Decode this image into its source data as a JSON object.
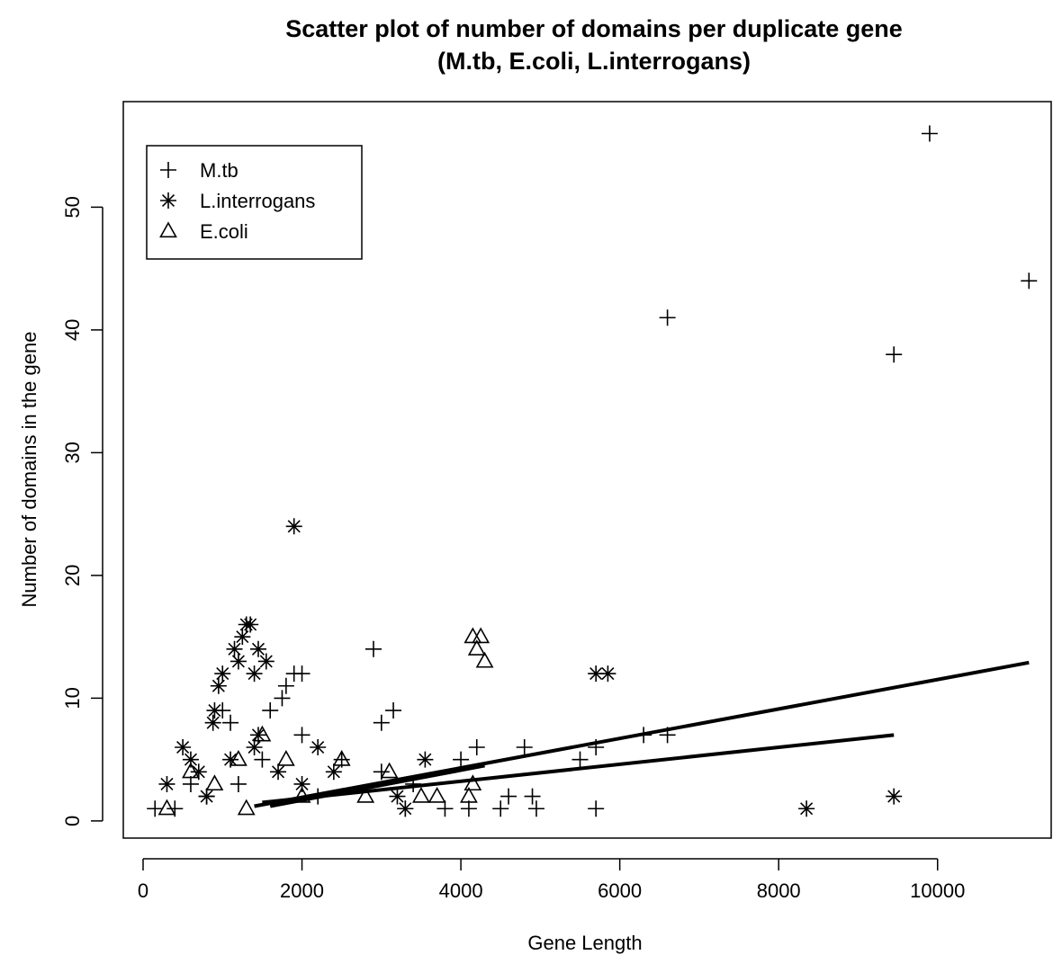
{
  "chart_data": {
    "type": "scatter",
    "title": "Scatter plot of number of domains per duplicate gene",
    "subtitle": "(M.tb, E.coli, L.interrogans)",
    "x_label": "Gene Length",
    "y_label": "Number of domains in the gene",
    "xlim": [
      -249,
      11430
    ],
    "ylim": [
      -1.4,
      58.6
    ],
    "xticks": [
      0,
      2000,
      4000,
      6000,
      8000,
      10000
    ],
    "yticks": [
      0,
      10,
      20,
      30,
      40,
      50
    ],
    "legend": "top-left",
    "series": [
      {
        "name": "M.tb",
        "color": "#000000",
        "marker": "plus",
        "x": [
          9900,
          11150,
          6600,
          9450,
          2900,
          1900,
          2000,
          1800,
          1750,
          3150,
          3000,
          1600,
          4200,
          4800,
          5700,
          6300,
          6600,
          5500,
          4900,
          4600,
          5700,
          4950,
          4100,
          3800,
          1000,
          1100,
          2000,
          1500,
          2500,
          3000,
          1200,
          800,
          400,
          150,
          600,
          2200,
          3400,
          4000,
          3300,
          4500
        ],
        "y": [
          56,
          44,
          41,
          38,
          14,
          12,
          12,
          11,
          10,
          9,
          8,
          9,
          6,
          6,
          6,
          7,
          7,
          5,
          2,
          2,
          1,
          1,
          1,
          1,
          9,
          8,
          7,
          5,
          5,
          4,
          3,
          2,
          1,
          1,
          3,
          2,
          3,
          5,
          1,
          1
        ]
      },
      {
        "name": "L.interrogans",
        "color": "#000000",
        "marker": "asterisk",
        "x": [
          1900,
          1300,
          1350,
          1250,
          1150,
          1450,
          1200,
          1550,
          1400,
          1000,
          950,
          900,
          880,
          5700,
          5850,
          9450,
          8350,
          1450,
          1400,
          500,
          600,
          700,
          1100,
          2200,
          3550,
          3300,
          3200,
          2000,
          300,
          800,
          1700,
          2400
        ],
        "y": [
          24,
          16,
          16,
          15,
          14,
          14,
          13,
          13,
          12,
          12,
          11,
          9,
          8,
          12,
          12,
          2,
          1,
          7,
          6,
          6,
          5,
          4,
          5,
          6,
          5,
          1,
          2,
          3,
          3,
          2,
          4,
          4
        ]
      },
      {
        "name": "E.coli",
        "color": "#000000",
        "marker": "triangle",
        "x": [
          4150,
          4250,
          4200,
          4300,
          1500,
          1200,
          1800,
          2500,
          3100,
          3700,
          4100,
          4150,
          600,
          900,
          2000,
          2800,
          300,
          1300,
          3500
        ],
        "y": [
          15,
          15,
          14,
          13,
          7,
          5,
          5,
          5,
          4,
          2,
          2,
          3,
          4,
          3,
          2,
          2,
          1,
          1,
          2
        ]
      }
    ],
    "trend_lines": [
      {
        "x": [
          1400,
          11150
        ],
        "y": [
          1.2,
          12.9
        ]
      },
      {
        "x": [
          1500,
          9450
        ],
        "y": [
          1.5,
          7.0
        ]
      },
      {
        "x": [
          1600,
          4300
        ],
        "y": [
          1.2,
          4.5
        ]
      }
    ]
  }
}
